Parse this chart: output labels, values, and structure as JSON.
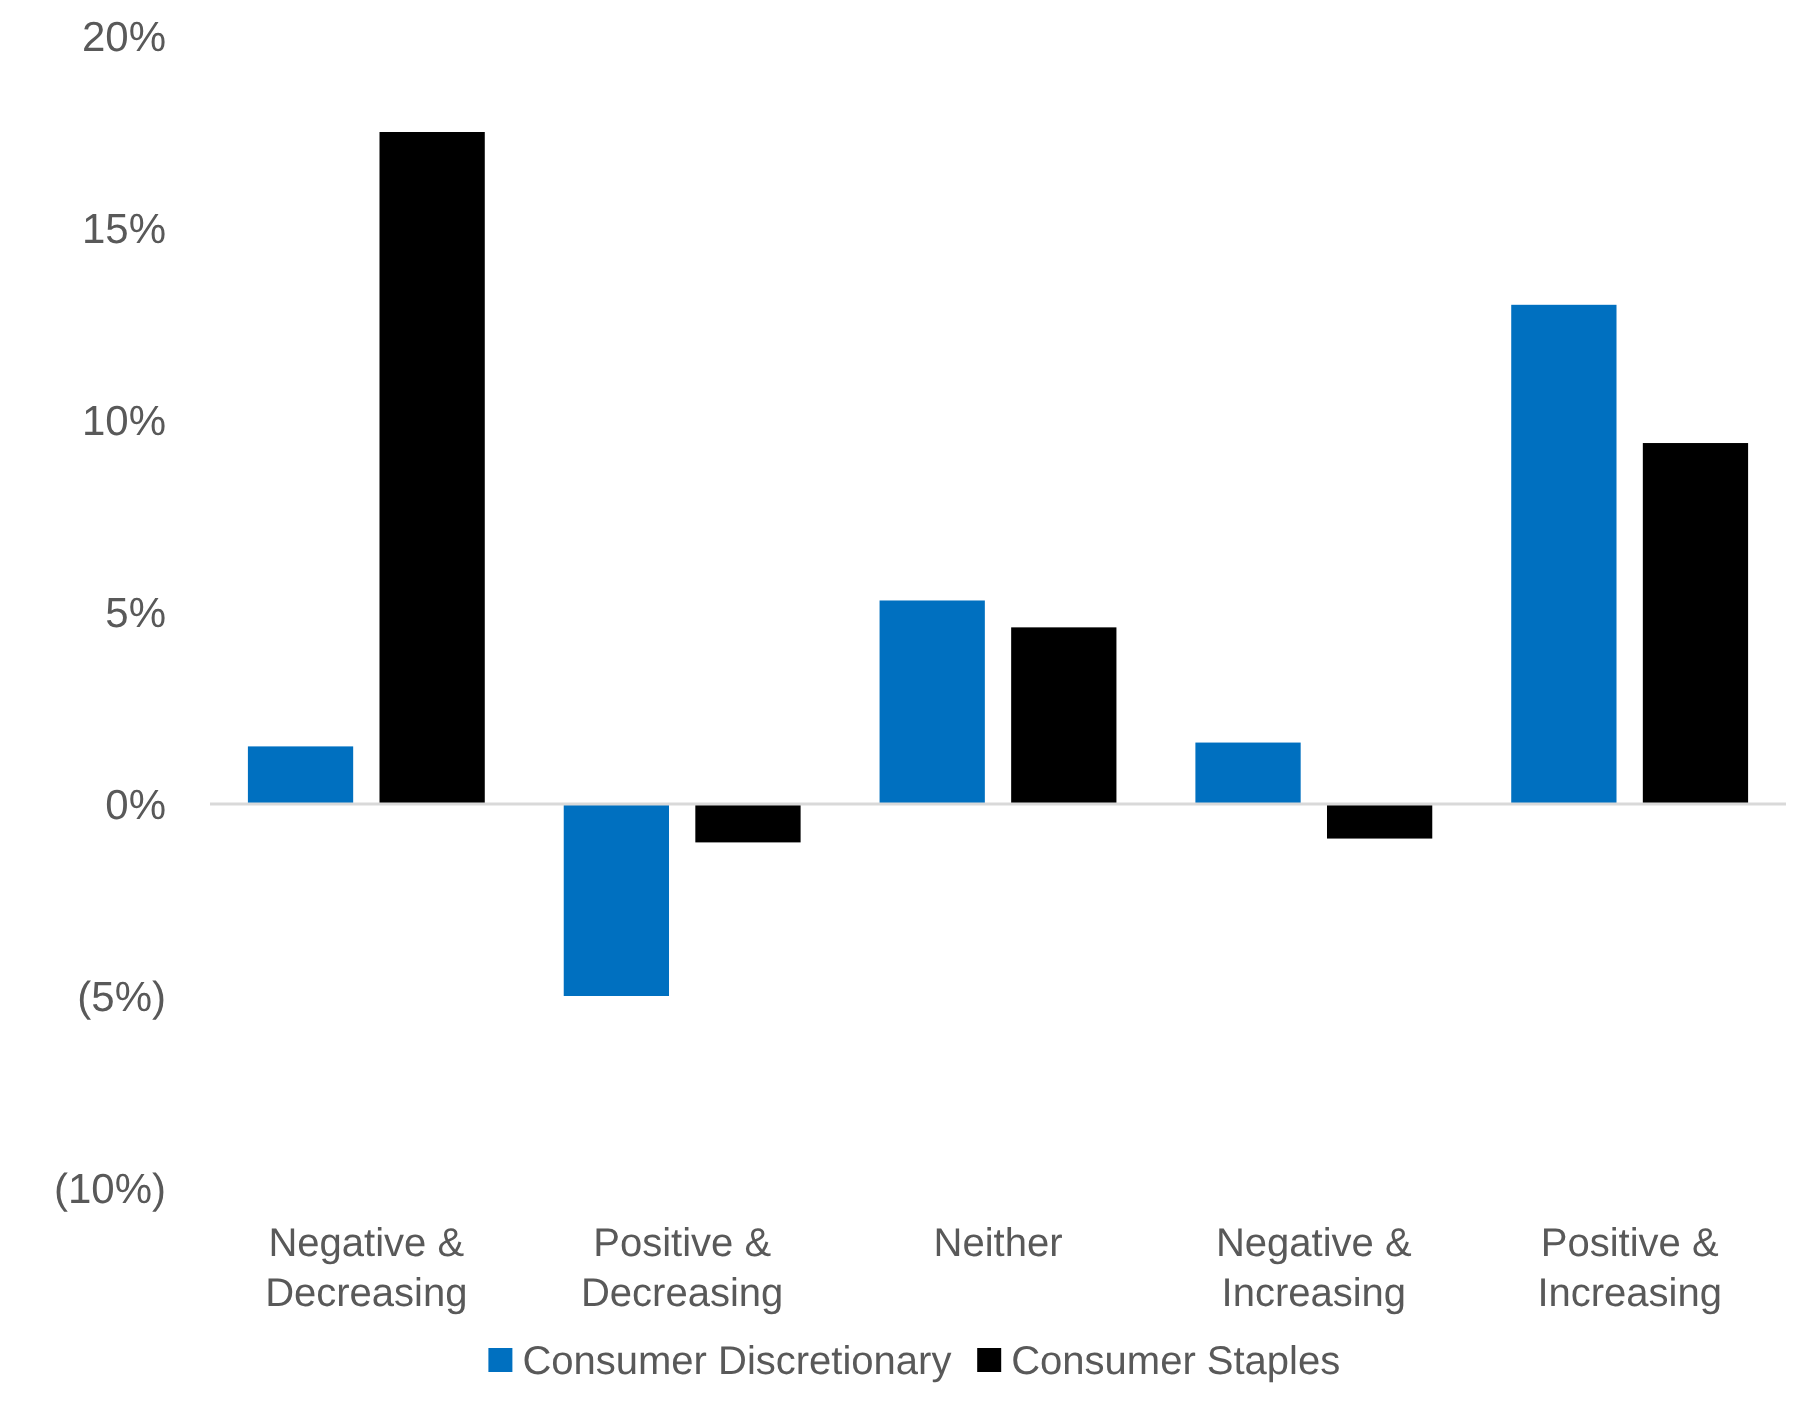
{
  "chart_data": {
    "type": "bar",
    "categories": [
      "Negative &\nDecreasing",
      "Positive &\nDecreasing",
      "Neither",
      "Negative &\nIncreasing",
      "Positive &\nIncreasing"
    ],
    "series": [
      {
        "name": "Consumer Discretionary",
        "color": "#0070c0",
        "values": [
          1.5,
          -5.0,
          5.3,
          1.6,
          13.0
        ]
      },
      {
        "name": "Consumer Staples",
        "color": "#000000",
        "values": [
          17.5,
          -1.0,
          4.6,
          -0.9,
          9.4
        ]
      }
    ],
    "ylim": [
      -10,
      20
    ],
    "yticks": [
      {
        "value": -10,
        "label": "(10%)"
      },
      {
        "value": -5,
        "label": "(5%)"
      },
      {
        "value": 0,
        "label": "0%"
      },
      {
        "value": 5,
        "label": "5%"
      },
      {
        "value": 10,
        "label": "10%"
      },
      {
        "value": 15,
        "label": "15%"
      },
      {
        "value": 20,
        "label": "20%"
      }
    ],
    "legend": "bottom"
  }
}
